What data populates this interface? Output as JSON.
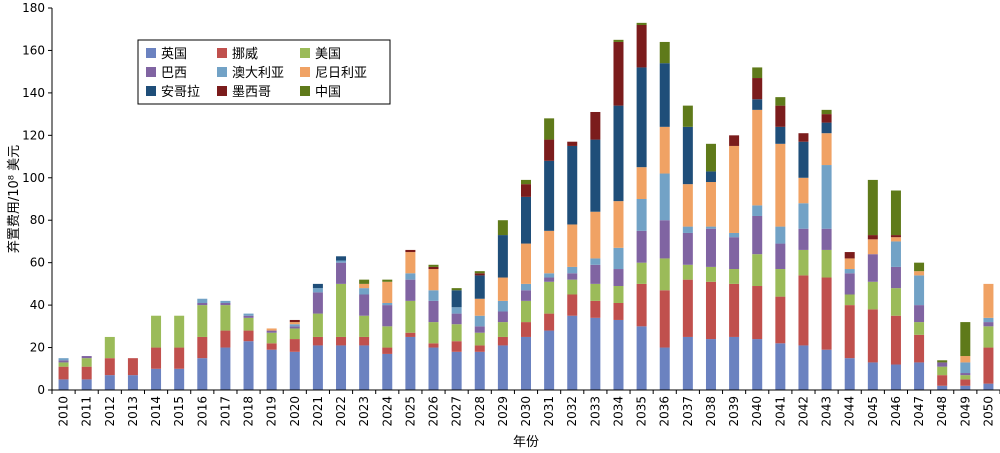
{
  "chart_data": {
    "type": "bar",
    "stacked": true,
    "title": "",
    "xlabel": "年份",
    "ylabel": "弃置费用/10⁸ 美元",
    "ylim": [
      0,
      180
    ],
    "yticks": [
      0,
      20,
      40,
      60,
      80,
      100,
      120,
      140,
      160,
      180
    ],
    "grid": false,
    "legend_position": "top-left",
    "categories": [
      "2010",
      "2011",
      "2012",
      "2013",
      "2014",
      "2015",
      "2016",
      "2017",
      "2018",
      "2019",
      "2020",
      "2021",
      "2022",
      "2023",
      "2024",
      "2025",
      "2026",
      "2027",
      "2028",
      "2029",
      "2030",
      "2031",
      "2032",
      "2033",
      "2034",
      "2035",
      "2036",
      "2037",
      "2038",
      "2039",
      "2040",
      "2041",
      "2042",
      "2043",
      "2044",
      "2045",
      "2046",
      "2047",
      "2048",
      "2049",
      "2050"
    ],
    "series": [
      {
        "name": "英国",
        "color": "#6b82c0",
        "values": [
          5,
          5,
          7,
          7,
          10,
          10,
          15,
          20,
          23,
          19,
          18,
          21,
          21,
          21,
          17,
          25,
          20,
          18,
          18,
          21,
          25,
          28,
          35,
          34,
          33,
          30,
          20,
          25,
          24,
          25,
          24,
          22,
          21,
          19,
          15,
          13,
          12,
          13,
          2,
          2,
          3
        ]
      },
      {
        "name": "挪威",
        "color": "#c0504d",
        "values": [
          6,
          6,
          8,
          8,
          10,
          10,
          10,
          8,
          5,
          3,
          6,
          4,
          4,
          4,
          3,
          2,
          2,
          5,
          3,
          4,
          7,
          8,
          10,
          8,
          8,
          20,
          27,
          27,
          27,
          25,
          25,
          22,
          33,
          34,
          25,
          25,
          23,
          13,
          5,
          3,
          17
        ]
      },
      {
        "name": "美国",
        "color": "#9bbb59",
        "values": [
          2,
          4,
          10,
          0,
          15,
          15,
          15,
          12,
          6,
          5,
          5,
          11,
          25,
          10,
          10,
          15,
          10,
          8,
          6,
          7,
          10,
          15,
          7,
          8,
          8,
          10,
          15,
          7,
          7,
          7,
          15,
          13,
          12,
          13,
          5,
          13,
          13,
          6,
          4,
          2,
          10
        ]
      },
      {
        "name": "巴西",
        "color": "#8064a2",
        "values": [
          1,
          1,
          0,
          0,
          0,
          0,
          1,
          1,
          1,
          1,
          1,
          10,
          10,
          10,
          10,
          10,
          10,
          5,
          3,
          5,
          5,
          2,
          3,
          9,
          8,
          15,
          18,
          15,
          18,
          15,
          18,
          12,
          10,
          10,
          10,
          13,
          10,
          8,
          2,
          1,
          2
        ]
      },
      {
        "name": "澳大利亚",
        "color": "#72a2c6",
        "values": [
          1,
          0,
          0,
          0,
          0,
          0,
          2,
          1,
          1,
          0,
          1,
          2,
          1,
          3,
          1,
          3,
          5,
          3,
          5,
          5,
          3,
          2,
          3,
          3,
          10,
          15,
          22,
          3,
          1,
          2,
          5,
          8,
          12,
          30,
          2,
          0,
          12,
          14,
          0,
          5,
          2
        ]
      },
      {
        "name": "尼日利亚",
        "color": "#f0a264",
        "values": [
          0,
          0,
          0,
          0,
          0,
          0,
          0,
          0,
          0,
          1,
          1,
          0,
          0,
          2,
          10,
          10,
          10,
          0,
          8,
          11,
          19,
          20,
          20,
          22,
          22,
          15,
          22,
          20,
          21,
          41,
          45,
          39,
          12,
          15,
          5,
          7,
          2,
          2,
          0,
          3,
          16
        ]
      },
      {
        "name": "安哥拉",
        "color": "#1f4e79",
        "values": [
          0,
          0,
          0,
          0,
          0,
          0,
          0,
          0,
          0,
          0,
          0,
          2,
          2,
          0,
          0,
          0,
          0,
          8,
          11,
          20,
          22,
          33,
          37,
          34,
          45,
          47,
          30,
          27,
          5,
          0,
          5,
          8,
          17,
          5,
          0,
          0,
          0,
          0,
          0,
          0,
          0
        ]
      },
      {
        "name": "墨西哥",
        "color": "#7b1c1c",
        "values": [
          0,
          0,
          0,
          0,
          0,
          0,
          0,
          0,
          0,
          0,
          1,
          0,
          0,
          0,
          0,
          1,
          1,
          0,
          1,
          0,
          6,
          10,
          2,
          13,
          30,
          20,
          0,
          0,
          0,
          5,
          10,
          10,
          4,
          4,
          3,
          2,
          1,
          0,
          0,
          0,
          0
        ]
      },
      {
        "name": "中国",
        "color": "#5f7a1a",
        "values": [
          0,
          0,
          0,
          0,
          0,
          0,
          0,
          0,
          0,
          0,
          0,
          0,
          0,
          2,
          1,
          0,
          1,
          1,
          1,
          7,
          2,
          10,
          0,
          0,
          1,
          1,
          10,
          10,
          13,
          0,
          5,
          4,
          0,
          2,
          0,
          26,
          21,
          4,
          1,
          16,
          0
        ]
      }
    ]
  }
}
